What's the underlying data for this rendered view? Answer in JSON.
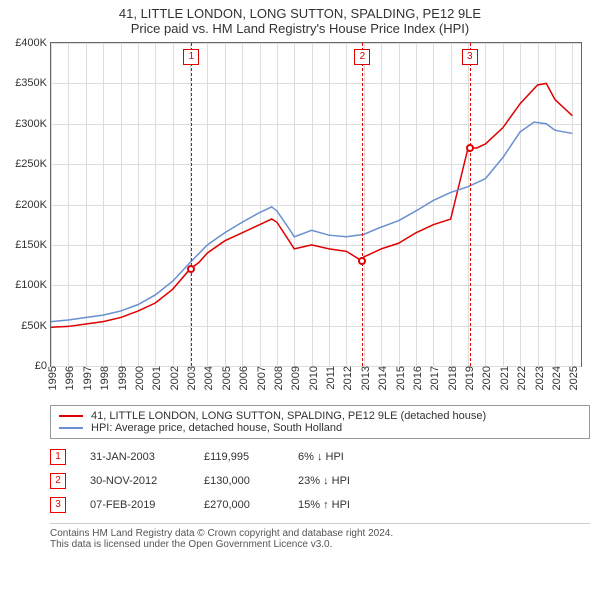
{
  "title": "41, LITTLE LONDON, LONG SUTTON, SPALDING, PE12 9LE",
  "subtitle": "Price paid vs. HM Land Registry's House Price Index (HPI)",
  "chart": {
    "type": "line",
    "background_color": "#ffffff",
    "grid_color": "#dddddd",
    "border_color": "#666666",
    "xlim": [
      1995,
      2025.5
    ],
    "ylim": [
      0,
      400000
    ],
    "ytick_step": 50000,
    "yticks": [
      "£0",
      "£50K",
      "£100K",
      "£150K",
      "£200K",
      "£250K",
      "£300K",
      "£350K",
      "£400K"
    ],
    "xticks": [
      1995,
      1996,
      1997,
      1998,
      1999,
      2000,
      2001,
      2002,
      2003,
      2004,
      2005,
      2006,
      2007,
      2008,
      2009,
      2010,
      2011,
      2012,
      2013,
      2014,
      2015,
      2016,
      2017,
      2018,
      2019,
      2020,
      2021,
      2022,
      2023,
      2024,
      2025
    ],
    "label_fontsize": 11,
    "series": [
      {
        "name": "address",
        "label": "41, LITTLE LONDON, LONG SUTTON, SPALDING, PE12 9LE (detached house)",
        "color": "#e00000",
        "line_width": 1.5,
        "data": [
          [
            1995,
            48000
          ],
          [
            1996,
            49000
          ],
          [
            1997,
            52000
          ],
          [
            1998,
            55000
          ],
          [
            1999,
            60000
          ],
          [
            2000,
            68000
          ],
          [
            2001,
            78000
          ],
          [
            2002,
            95000
          ],
          [
            2003,
            119995
          ],
          [
            2003.5,
            128000
          ],
          [
            2004,
            140000
          ],
          [
            2005,
            155000
          ],
          [
            2006,
            165000
          ],
          [
            2007,
            175000
          ],
          [
            2007.7,
            182000
          ],
          [
            2008,
            178000
          ],
          [
            2008.7,
            155000
          ],
          [
            2009,
            145000
          ],
          [
            2010,
            150000
          ],
          [
            2011,
            145000
          ],
          [
            2012,
            142000
          ],
          [
            2012.9,
            130000
          ],
          [
            2013,
            135000
          ],
          [
            2014,
            145000
          ],
          [
            2015,
            152000
          ],
          [
            2016,
            165000
          ],
          [
            2017,
            175000
          ],
          [
            2018,
            182000
          ],
          [
            2019,
            270000
          ],
          [
            2019.5,
            270000
          ],
          [
            2020,
            275000
          ],
          [
            2021,
            295000
          ],
          [
            2022,
            325000
          ],
          [
            2023,
            348000
          ],
          [
            2023.5,
            350000
          ],
          [
            2024,
            330000
          ],
          [
            2025,
            310000
          ]
        ]
      },
      {
        "name": "hpi",
        "label": "HPI: Average price, detached house, South Holland",
        "color": "#6a8fd0",
        "line_width": 1.5,
        "data": [
          [
            1995,
            55000
          ],
          [
            1996,
            57000
          ],
          [
            1997,
            60000
          ],
          [
            1998,
            63000
          ],
          [
            1999,
            68000
          ],
          [
            2000,
            76000
          ],
          [
            2001,
            88000
          ],
          [
            2002,
            105000
          ],
          [
            2003,
            128000
          ],
          [
            2004,
            150000
          ],
          [
            2005,
            165000
          ],
          [
            2006,
            178000
          ],
          [
            2007,
            190000
          ],
          [
            2007.7,
            197000
          ],
          [
            2008,
            192000
          ],
          [
            2008.7,
            170000
          ],
          [
            2009,
            160000
          ],
          [
            2010,
            168000
          ],
          [
            2011,
            162000
          ],
          [
            2012,
            160000
          ],
          [
            2013,
            163000
          ],
          [
            2014,
            172000
          ],
          [
            2015,
            180000
          ],
          [
            2016,
            192000
          ],
          [
            2017,
            205000
          ],
          [
            2018,
            215000
          ],
          [
            2019,
            222000
          ],
          [
            2020,
            232000
          ],
          [
            2021,
            258000
          ],
          [
            2022,
            290000
          ],
          [
            2022.8,
            302000
          ],
          [
            2023.5,
            300000
          ],
          [
            2024,
            292000
          ],
          [
            2025,
            288000
          ]
        ]
      }
    ],
    "markers": [
      {
        "n": "1",
        "x": 2003.08,
        "y": 119995
      },
      {
        "n": "2",
        "x": 2012.92,
        "y": 130000
      },
      {
        "n": "3",
        "x": 2019.1,
        "y": 270000
      }
    ],
    "marker_color": "#e00000"
  },
  "legend": {
    "items": [
      {
        "color": "#e00000",
        "label": "41, LITTLE LONDON, LONG SUTTON, SPALDING, PE12 9LE (detached house)"
      },
      {
        "color": "#6a8fd0",
        "label": "HPI: Average price, detached house, South Holland"
      }
    ]
  },
  "transactions": [
    {
      "n": "1",
      "date": "31-JAN-2003",
      "price": "£119,995",
      "delta": "6% ↓ HPI"
    },
    {
      "n": "2",
      "date": "30-NOV-2012",
      "price": "£130,000",
      "delta": "23% ↓ HPI"
    },
    {
      "n": "3",
      "date": "07-FEB-2019",
      "price": "£270,000",
      "delta": "15% ↑ HPI"
    }
  ],
  "footer": {
    "line1": "Contains HM Land Registry data © Crown copyright and database right 2024.",
    "line2": "This data is licensed under the Open Government Licence v3.0."
  }
}
